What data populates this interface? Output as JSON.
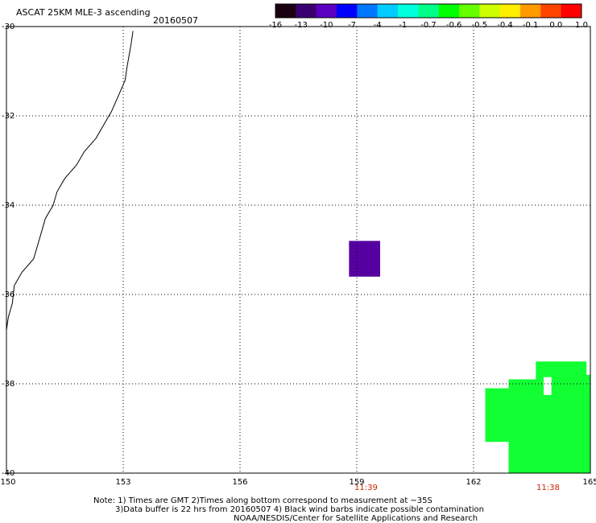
{
  "header": {
    "title": "ASCAT 25KM MLE-3 ascending",
    "date": "20160507"
  },
  "colorbar": {
    "colors": [
      "#1a0010",
      "#3a0070",
      "#5a00c0",
      "#0000ff",
      "#0077ff",
      "#00ccff",
      "#00ffdd",
      "#00ff88",
      "#00ff00",
      "#66ff00",
      "#ccff00",
      "#ffee00",
      "#ff9900",
      "#ff4400",
      "#ff0000"
    ],
    "labels": [
      "-16",
      "-13",
      "-10",
      "-7",
      "-4",
      "-1",
      "-0.7",
      "-0.6",
      "-0.5",
      "-0.4",
      "-0.1",
      "0.0",
      "1.0"
    ]
  },
  "axes": {
    "lat_labels": [
      "-30",
      "-32",
      "-34",
      "-36",
      "-38",
      "-40"
    ],
    "lon_labels": [
      "150",
      "153",
      "156",
      "159",
      "162",
      "165"
    ]
  },
  "times": [
    "11:39",
    "11:38"
  ],
  "cells": [
    {
      "lon_min": 158.8,
      "lon_max": 159.6,
      "lat_min": -35.6,
      "lat_max": -34.8,
      "color": "#5500a0"
    },
    {
      "lon_min": 163.6,
      "lon_max": 164.9,
      "lat_min": -38.5,
      "lat_max": -37.5,
      "color": "#11ff33"
    },
    {
      "lon_min": 162.9,
      "lon_max": 165.0,
      "lat_min": -38.9,
      "lat_max": -37.9,
      "color": "#11ff33"
    },
    {
      "lon_min": 162.3,
      "lon_max": 165.0,
      "lat_min": -39.3,
      "lat_max": -38.1,
      "color": "#11ff33"
    },
    {
      "lon_min": 162.9,
      "lon_max": 165.0,
      "lat_min": -40.0,
      "lat_max": -38.9,
      "color": "#11ff33"
    },
    {
      "lon_min": 164.7,
      "lon_max": 165.0,
      "lat_min": -38.2,
      "lat_max": -37.8,
      "color": "#11ff33"
    },
    {
      "lon_min": 163.8,
      "lon_max": 164.0,
      "lat_min": -38.25,
      "lat_max": -37.85,
      "color": "#ffffff"
    }
  ],
  "coastline": [
    [
      153.25,
      -30.1
    ],
    [
      153.2,
      -30.4
    ],
    [
      153.1,
      -30.9
    ],
    [
      153.05,
      -31.2
    ],
    [
      152.9,
      -31.5
    ],
    [
      152.7,
      -31.9
    ],
    [
      152.5,
      -32.2
    ],
    [
      152.3,
      -32.5
    ],
    [
      152.0,
      -32.8
    ],
    [
      151.8,
      -33.1
    ],
    [
      151.5,
      -33.4
    ],
    [
      151.3,
      -33.7
    ],
    [
      151.2,
      -34.0
    ],
    [
      151.0,
      -34.3
    ],
    [
      150.9,
      -34.6
    ],
    [
      150.8,
      -34.9
    ],
    [
      150.7,
      -35.2
    ],
    [
      150.4,
      -35.5
    ],
    [
      150.2,
      -35.8
    ],
    [
      150.15,
      -36.2
    ],
    [
      150.05,
      -36.5
    ],
    [
      150.0,
      -36.8
    ]
  ],
  "footer": {
    "line1": "Note: 1) Times are GMT 2)Times along bottom correspond to measurement at ~35S",
    "line2": "3)Data buffer is 22 hrs from 20160507 4) Black wind barbs indicate possible contamination",
    "line3": "NOAA/NESDIS/Center for Satellite Applications and Research"
  }
}
